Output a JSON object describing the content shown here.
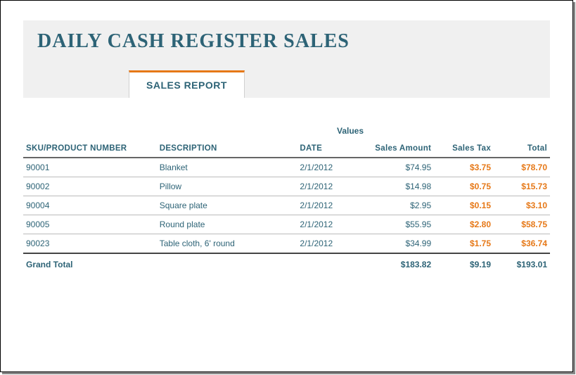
{
  "header": {
    "title": "DAILY CASH REGISTER SALES",
    "tab_label": "SALES REPORT"
  },
  "table": {
    "values_label": "Values",
    "columns": {
      "sku": "SKU/PRODUCT NUMBER",
      "description": "DESCRIPTION",
      "date": "DATE",
      "sales_amount": "Sales Amount",
      "sales_tax": "Sales Tax",
      "total": "Total"
    },
    "rows": [
      {
        "sku": "90001",
        "description": "Blanket",
        "date": "2/1/2012",
        "sales_amount": "$74.95",
        "sales_tax": "$3.75",
        "total": "$78.70"
      },
      {
        "sku": "90002",
        "description": "Pillow",
        "date": "2/1/2012",
        "sales_amount": "$14.98",
        "sales_tax": "$0.75",
        "total": "$15.73"
      },
      {
        "sku": "90004",
        "description": "Square plate",
        "date": "2/1/2012",
        "sales_amount": "$2.95",
        "sales_tax": "$0.15",
        "total": "$3.10"
      },
      {
        "sku": "90005",
        "description": "Round plate",
        "date": "2/1/2012",
        "sales_amount": "$55.95",
        "sales_tax": "$2.80",
        "total": "$58.75"
      },
      {
        "sku": "90023",
        "description": "Table cloth, 6' round",
        "date": "2/1/2012",
        "sales_amount": "$34.99",
        "sales_tax": "$1.75",
        "total": "$36.74"
      }
    ],
    "footer": {
      "label": "Grand Total",
      "sales_amount": "$183.82",
      "sales_tax": "$9.19",
      "total": "$193.01"
    },
    "colors": {
      "text_primary": "#2d6376",
      "accent_orange": "#e67817",
      "header_bg": "#f0f0f0",
      "row_border": "#bbbbbb",
      "heavy_border": "#666666"
    }
  }
}
